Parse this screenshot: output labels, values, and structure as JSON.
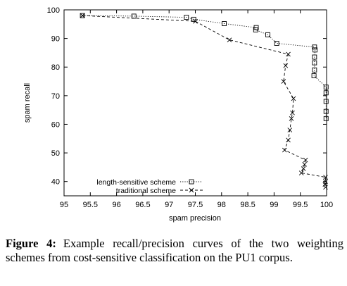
{
  "chart_data": {
    "type": "line",
    "xlabel": "spam precision",
    "ylabel": "spam recall",
    "xlim": [
      95,
      100
    ],
    "ylim": [
      35,
      100
    ],
    "x_ticks": [
      "95",
      "95.5",
      "96",
      "96.5",
      "97",
      "97.5",
      "98",
      "98.5",
      "99",
      "99.5",
      "100"
    ],
    "y_ticks": [
      "40",
      "50",
      "60",
      "70",
      "80",
      "90",
      "100"
    ],
    "legend_position": "bottom-left",
    "grid": false,
    "series": [
      {
        "name": "length-sensitive scheme",
        "marker": "square",
        "line_style": "dotted",
        "points": [
          [
            95.35,
            98.0
          ],
          [
            96.33,
            97.8
          ],
          [
            97.33,
            97.4
          ],
          [
            97.47,
            96.7
          ],
          [
            98.05,
            95.2
          ],
          [
            98.66,
            93.8
          ],
          [
            98.65,
            93.0
          ],
          [
            98.88,
            91.3
          ],
          [
            99.05,
            88.3
          ],
          [
            99.77,
            87.0
          ],
          [
            99.78,
            86.0
          ],
          [
            99.77,
            83.5
          ],
          [
            99.77,
            81.5
          ],
          [
            99.77,
            79.0
          ],
          [
            99.76,
            77.0
          ],
          [
            99.99,
            73.0
          ],
          [
            99.99,
            71.0
          ],
          [
            99.99,
            68.0
          ],
          [
            99.99,
            64.5
          ],
          [
            99.99,
            62.0
          ]
        ]
      },
      {
        "name": "traditional scheme",
        "marker": "x",
        "line_style": "dashed",
        "points": [
          [
            95.35,
            98.0
          ],
          [
            97.5,
            96.0
          ],
          [
            98.15,
            89.5
          ],
          [
            99.27,
            84.5
          ],
          [
            99.22,
            80.5
          ],
          [
            99.18,
            75.0
          ],
          [
            99.37,
            69.0
          ],
          [
            99.35,
            64.0
          ],
          [
            99.33,
            62.0
          ],
          [
            99.3,
            58.0
          ],
          [
            99.27,
            54.5
          ],
          [
            99.2,
            51.0
          ],
          [
            99.6,
            47.5
          ],
          [
            99.58,
            46.0
          ],
          [
            99.56,
            44.5
          ],
          [
            99.52,
            43.0
          ],
          [
            99.98,
            41.5
          ],
          [
            99.98,
            40.0
          ],
          [
            99.97,
            39.0
          ],
          [
            99.98,
            38.0
          ]
        ]
      }
    ]
  },
  "caption": {
    "label": "Figure 4:",
    "text": "Example recall/precision curves of the two weighting schemes from cost-sensitive classification on the PU1 corpus."
  }
}
